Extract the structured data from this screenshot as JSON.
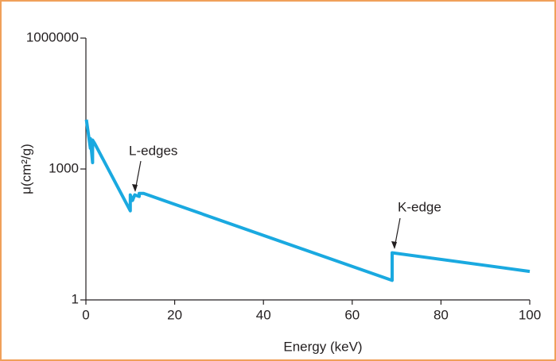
{
  "chart_data": {
    "type": "line",
    "x_label": "Energy (keV)",
    "y_label": "μ(cm²/g)",
    "x": [
      0.1,
      1.0,
      1.0,
      1.5,
      1.5,
      2.0,
      10.0,
      10.0,
      10.5,
      11.0,
      12.0,
      12.0,
      13.0,
      69.0,
      69.0,
      100
    ],
    "series": [
      {
        "color": "#1aa9e0",
        "values": [
          13500,
          3000,
          5000,
          1400,
          4600,
          3800,
          110,
          255,
          190,
          255,
          235,
          275,
          275,
          2.8,
          12,
          4.5
        ]
      }
    ],
    "xlim": [
      0,
      100
    ],
    "xticks": [
      0,
      20,
      40,
      60,
      80,
      100
    ],
    "ylim": [
      1,
      1000000
    ],
    "yticks": [
      1,
      1000,
      1000000
    ],
    "yscale": "log",
    "annotations": [
      "L-edges",
      "K-edge"
    ]
  }
}
